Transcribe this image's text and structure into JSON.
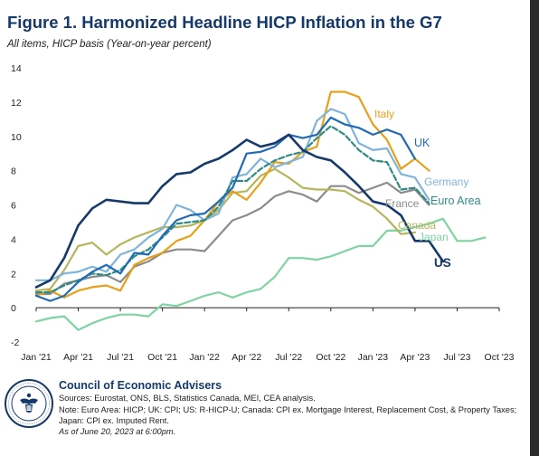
{
  "chart_data": {
    "type": "line",
    "title": "Figure 1. Harmonized Headline HICP Inflation in the G7",
    "subtitle": "All items, HICP basis (Year-on-year percent)",
    "xlabel": "",
    "ylabel": "",
    "ylim": [
      -2,
      14
    ],
    "yticks": [
      -2,
      0,
      2,
      4,
      6,
      8,
      10,
      12,
      14
    ],
    "xlim": [
      "2021-01",
      "2023-10"
    ],
    "xticks": [
      {
        "date": "2021-01",
        "label": "Jan '21"
      },
      {
        "date": "2021-04",
        "label": "Apr '21"
      },
      {
        "date": "2021-07",
        "label": "Jul '21"
      },
      {
        "date": "2021-10",
        "label": "Oct '21"
      },
      {
        "date": "2022-01",
        "label": "Jan '22"
      },
      {
        "date": "2022-04",
        "label": "Apr '22"
      },
      {
        "date": "2022-07",
        "label": "Jul '22"
      },
      {
        "date": "2022-10",
        "label": "Oct '22"
      },
      {
        "date": "2023-01",
        "label": "Jan '23"
      },
      {
        "date": "2023-04",
        "label": "Apr '23"
      },
      {
        "date": "2023-07",
        "label": "Jul '23"
      },
      {
        "date": "2023-10",
        "label": "Oct '23"
      }
    ],
    "grid": false,
    "legend": "direct labels at line ends",
    "start": "2021-01",
    "series": [
      {
        "name": "Japan",
        "color": "#7fd4a3",
        "dash": false,
        "bold": false,
        "values": [
          -0.8,
          -0.6,
          -0.5,
          -1.3,
          -0.9,
          -0.6,
          -0.4,
          -0.4,
          -0.5,
          0.2,
          0.1,
          0.4,
          0.7,
          0.9,
          0.6,
          0.9,
          1.1,
          1.8,
          2.9,
          2.9,
          2.8,
          3.0,
          3.3,
          3.6,
          3.6,
          4.5,
          4.5,
          4.7,
          4.9,
          5.2,
          3.9,
          3.9,
          4.1
        ]
      },
      {
        "name": "France",
        "color": "#8c8c8c",
        "dash": false,
        "bold": false,
        "values": [
          0.8,
          0.8,
          1.4,
          1.6,
          1.8,
          1.9,
          1.5,
          2.4,
          2.7,
          3.2,
          3.4,
          3.4,
          3.3,
          4.2,
          5.1,
          5.4,
          5.8,
          6.5,
          6.8,
          6.6,
          6.2,
          7.1,
          7.1,
          6.7,
          7.0,
          7.3,
          6.7,
          6.9,
          6.0
        ]
      },
      {
        "name": "Canada",
        "color": "#b5b65c",
        "dash": false,
        "bold": false,
        "values": [
          1.0,
          1.1,
          2.2,
          3.6,
          3.8,
          3.1,
          3.7,
          4.1,
          4.4,
          4.7,
          4.7,
          4.8,
          5.1,
          5.7,
          6.7,
          6.8,
          7.7,
          8.1,
          7.6,
          7.0,
          6.9,
          6.9,
          6.8,
          6.3,
          5.9,
          5.2,
          4.3,
          4.4
        ]
      },
      {
        "name": "Italy",
        "color": "#e8a01c",
        "dash": false,
        "bold": false,
        "values": [
          0.7,
          1.0,
          0.6,
          1.0,
          1.2,
          1.3,
          1.0,
          2.5,
          2.9,
          3.2,
          3.9,
          4.2,
          5.1,
          6.2,
          6.8,
          6.3,
          7.3,
          8.5,
          8.4,
          9.1,
          9.4,
          12.6,
          12.6,
          12.3,
          10.7,
          9.8,
          8.1,
          8.7,
          8.0
        ]
      },
      {
        "name": "Germany",
        "color": "#7fb4dc",
        "dash": false,
        "bold": false,
        "values": [
          1.6,
          1.6,
          2.0,
          2.1,
          2.4,
          2.1,
          3.1,
          3.4,
          4.1,
          4.6,
          6.0,
          5.7,
          5.1,
          5.5,
          7.6,
          7.8,
          8.7,
          8.2,
          8.5,
          8.8,
          10.9,
          11.6,
          11.3,
          9.6,
          9.2,
          9.3,
          7.8,
          7.6,
          6.3
        ]
      },
      {
        "name": "Euro Area",
        "color": "#2e8b84",
        "dash": true,
        "bold": false,
        "values": [
          0.9,
          0.9,
          1.3,
          1.6,
          2.0,
          1.9,
          2.2,
          3.0,
          3.4,
          4.1,
          4.9,
          5.0,
          5.1,
          5.9,
          7.4,
          7.4,
          8.1,
          8.6,
          8.9,
          9.1,
          9.9,
          10.6,
          10.1,
          9.2,
          8.6,
          8.5,
          6.9,
          7.0,
          6.1
        ]
      },
      {
        "name": "UK",
        "color": "#1f6bb5",
        "dash": false,
        "bold": false,
        "values": [
          0.7,
          0.4,
          0.7,
          1.5,
          2.1,
          2.5,
          2.0,
          3.2,
          3.1,
          4.2,
          5.1,
          5.4,
          5.5,
          6.2,
          7.0,
          9.0,
          9.1,
          9.4,
          10.1,
          9.9,
          10.1,
          11.1,
          10.7,
          10.5,
          10.1,
          10.4,
          10.1,
          8.7
        ]
      },
      {
        "name": "US",
        "color": "#15396a",
        "dash": false,
        "bold": true,
        "values": [
          1.2,
          1.6,
          2.9,
          4.8,
          5.8,
          6.3,
          6.2,
          6.1,
          6.1,
          7.1,
          7.8,
          7.9,
          8.4,
          8.7,
          9.2,
          9.8,
          9.4,
          9.6,
          10.1,
          9.2,
          8.8,
          8.6,
          7.9,
          7.1,
          6.2,
          6.0,
          5.4,
          3.9,
          3.9,
          2.7
        ]
      }
    ]
  },
  "footer": {
    "org": "Council of Economic Advisers",
    "sources": "Sources: Eurostat, ONS, BLS, Statistics Canada, MEI, CEA analysis.",
    "note": "Note: Euro Area: HICP; UK: CPI; US: R-HICP-U; Canada: CPI ex. Mortgage Interest, Replacement Cost, & Property Taxes; Japan: CPI ex. Imputed Rent.",
    "date": "As of June 20, 2023 at 6:00pm."
  },
  "seal_text": "PRESIDENT · EXECUTIVE OFFICE OF THE · OF THE UNITED STATES"
}
